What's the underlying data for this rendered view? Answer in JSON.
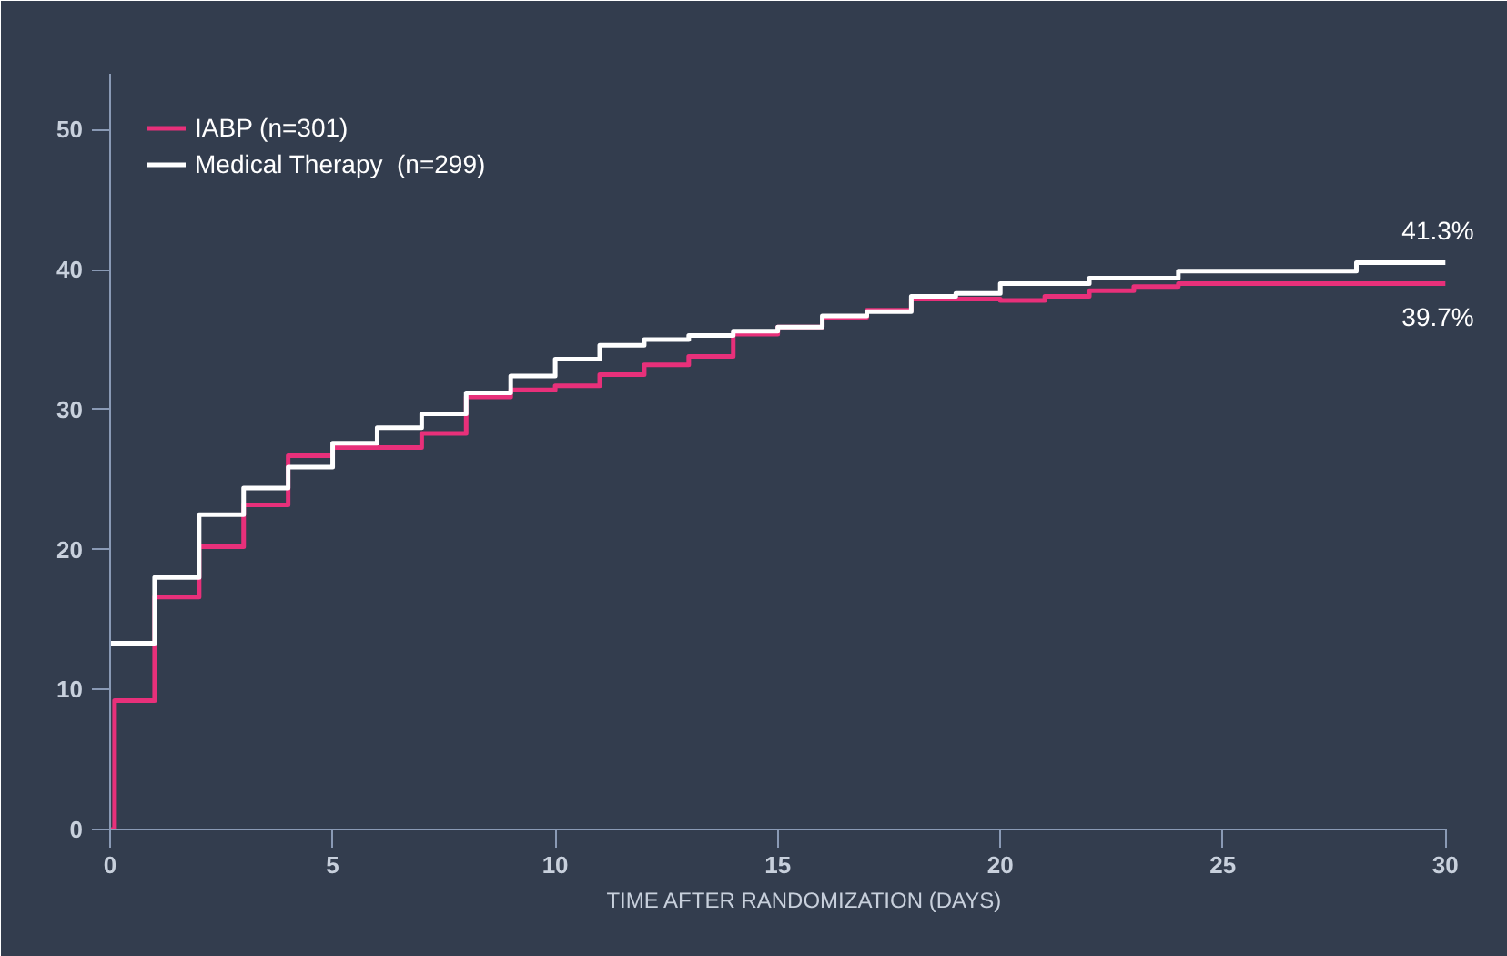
{
  "chart_data": {
    "type": "step",
    "xlabel": "TIME AFTER RANDOMIZATION (DAYS)",
    "xlim": [
      0,
      30
    ],
    "ylim": [
      0,
      54
    ],
    "xticks": [
      0,
      5,
      10,
      15,
      20,
      25,
      30
    ],
    "yticks": [
      0,
      10,
      20,
      30,
      40,
      50
    ],
    "grid": false,
    "legend": "top left",
    "line_style": "solid",
    "marker": "none",
    "series": [
      {
        "name": "IABP (n=301)",
        "color": "#e8307a",
        "x": [
          0,
          0.1,
          1,
          2,
          3,
          4,
          5,
          7,
          8,
          9,
          10,
          11,
          12,
          13,
          14,
          15,
          16,
          17,
          18,
          20,
          21,
          22,
          23,
          24,
          30
        ],
        "values": [
          0,
          9.2,
          16.6,
          20.2,
          23.2,
          26.7,
          27.3,
          28.3,
          30.9,
          31.4,
          31.7,
          32.5,
          33.2,
          33.8,
          35.4,
          35.9,
          36.6,
          37.1,
          37.9,
          37.8,
          38.1,
          38.5,
          38.8,
          39.0,
          39.0
        ]
      },
      {
        "name": "Medical Therapy  (n=299)",
        "color": "#ffffff",
        "x": [
          0,
          1,
          2,
          3,
          4,
          5,
          6,
          7,
          8,
          9,
          10,
          11,
          12,
          13,
          14,
          15,
          16,
          17,
          18,
          19,
          20,
          22,
          24,
          28,
          30
        ],
        "values": [
          13.3,
          18.0,
          22.5,
          24.4,
          25.9,
          27.6,
          28.7,
          29.7,
          31.2,
          32.4,
          33.6,
          34.6,
          35.0,
          35.3,
          35.6,
          35.9,
          36.7,
          37.0,
          38.1,
          38.3,
          39.0,
          39.4,
          39.9,
          40.5,
          40.5
        ]
      }
    ],
    "annotations": [
      "41.3%",
      "39.7%"
    ]
  }
}
